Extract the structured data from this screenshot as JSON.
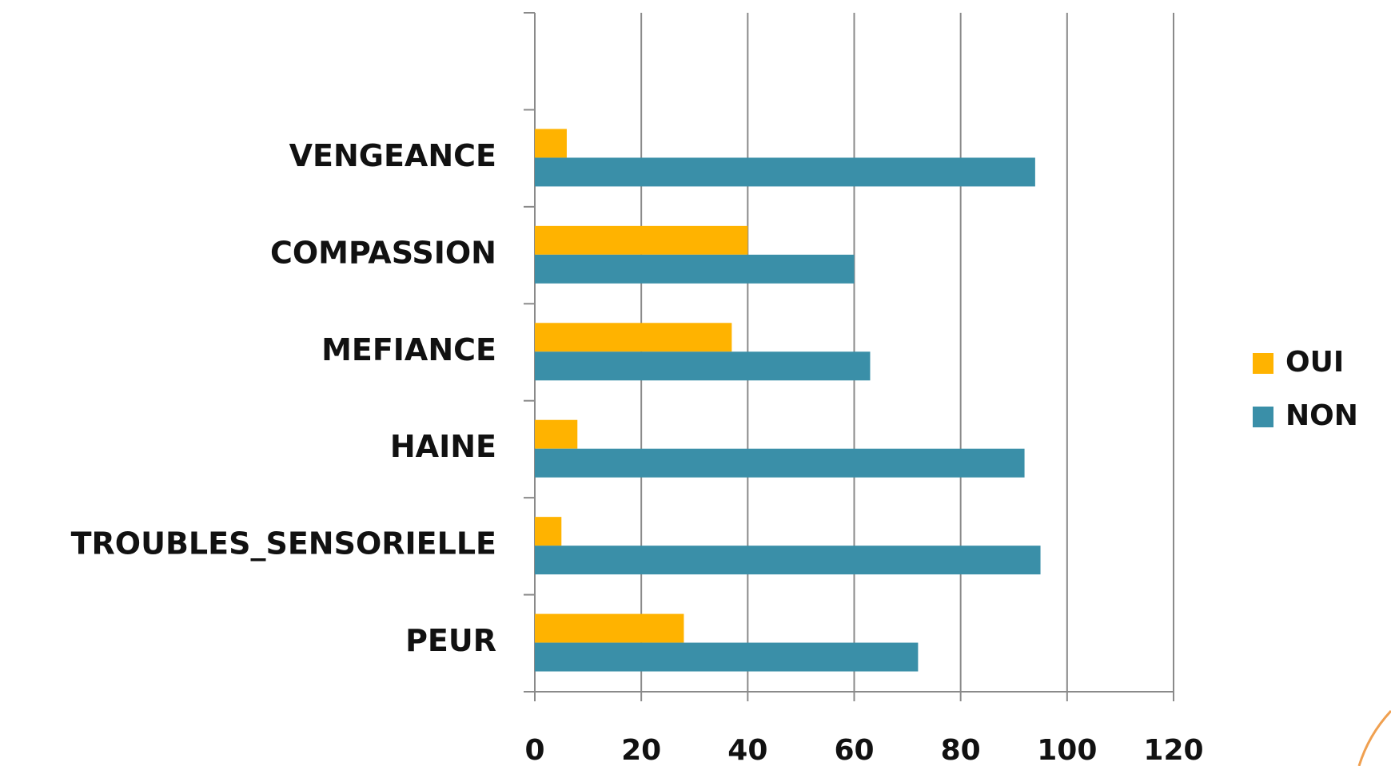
{
  "chart_data": {
    "type": "bar",
    "orientation": "horizontal",
    "categories": [
      "PEUR",
      "TROUBLES_SENSORIELLE",
      "HAINE",
      "MEFIANCE",
      "COMPASSION",
      "VENGEANCE",
      null
    ],
    "series": [
      {
        "name": "OUI",
        "color": "#ffb300",
        "values": [
          28,
          5,
          8,
          37,
          40,
          6,
          null
        ]
      },
      {
        "name": "NON",
        "color": "#3a8fa8",
        "values": [
          72,
          95,
          92,
          63,
          60,
          94,
          null
        ]
      }
    ],
    "xlim": [
      0,
      120
    ],
    "xticks": [
      0,
      20,
      40,
      60,
      80,
      100,
      120
    ],
    "grid": true,
    "legend": "right"
  }
}
